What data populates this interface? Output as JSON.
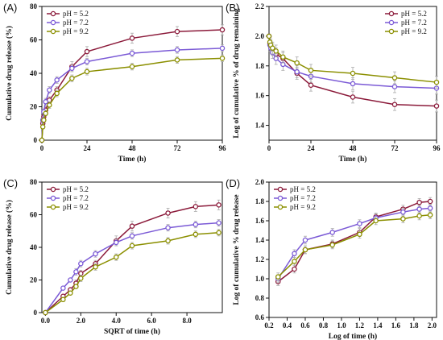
{
  "chart_data": [
    {
      "panel": "(A)",
      "type": "line",
      "xlabel": "Time (h)",
      "ylabel": "Cumulative drug release (%)",
      "xlim": [
        0,
        96
      ],
      "ylim": [
        0,
        80
      ],
      "xticks": [
        0,
        24,
        48,
        72,
        96
      ],
      "yticks": [
        0,
        20,
        40,
        60,
        80
      ],
      "legend": "top-left",
      "x": [
        0,
        0.5,
        1,
        2,
        4,
        8,
        16,
        24,
        48,
        72,
        96
      ],
      "series": [
        {
          "name": "pH = 5.2",
          "color": "#8b1a3a",
          "marker": "circle",
          "values": [
            0,
            10,
            14,
            18,
            24,
            30,
            44,
            53,
            61,
            65,
            66
          ],
          "err": [
            0,
            1,
            1,
            2,
            2,
            2,
            3,
            3,
            3,
            3,
            3
          ]
        },
        {
          "name": "pH = 7.2",
          "color": "#7b5ad6",
          "marker": "circle",
          "values": [
            0,
            12,
            17,
            23,
            30,
            36,
            43,
            47,
            52,
            54,
            55
          ],
          "err": [
            0,
            1,
            1,
            2,
            2,
            2,
            2,
            2,
            2,
            2,
            2
          ]
        },
        {
          "name": "pH = 9.2",
          "color": "#8b8f00",
          "marker": "circle",
          "values": [
            0,
            8,
            12,
            16,
            21,
            28,
            37,
            41,
            44,
            48,
            49
          ],
          "err": [
            0,
            1,
            1,
            1,
            2,
            2,
            2,
            2,
            2,
            2,
            2
          ]
        }
      ]
    },
    {
      "panel": "(B)",
      "type": "line",
      "xlabel": "Time (h)",
      "ylabel": "Log of cumulative % of drug remaining",
      "xlim": [
        0,
        96
      ],
      "ylim": [
        1.3,
        2.2
      ],
      "xticks": [
        0,
        24,
        48,
        72,
        96
      ],
      "yticks": [
        1.4,
        1.6,
        1.8,
        2.0,
        2.2
      ],
      "legend": "top-right",
      "x": [
        0,
        0.5,
        1,
        2,
        4,
        8,
        16,
        24,
        48,
        72,
        96
      ],
      "series": [
        {
          "name": "pH = 5.2",
          "color": "#8b1a3a",
          "marker": "circle",
          "values": [
            2.0,
            1.95,
            1.93,
            1.91,
            1.88,
            1.85,
            1.75,
            1.67,
            1.59,
            1.54,
            1.53
          ],
          "err": [
            0,
            0.04,
            0.04,
            0.04,
            0.04,
            0.04,
            0.04,
            0.04,
            0.04,
            0.04,
            0.04
          ]
        },
        {
          "name": "pH = 7.2",
          "color": "#7b5ad6",
          "marker": "circle",
          "values": [
            2.0,
            1.94,
            1.92,
            1.89,
            1.85,
            1.81,
            1.76,
            1.73,
            1.68,
            1.66,
            1.65
          ],
          "err": [
            0,
            0.04,
            0.04,
            0.04,
            0.04,
            0.04,
            0.04,
            0.04,
            0.04,
            0.04,
            0.04
          ]
        },
        {
          "name": "pH = 9.2",
          "color": "#8b8f00",
          "marker": "circle",
          "values": [
            2.0,
            1.96,
            1.94,
            1.92,
            1.9,
            1.86,
            1.82,
            1.77,
            1.75,
            1.72,
            1.69
          ],
          "err": [
            0,
            0.04,
            0.04,
            0.04,
            0.04,
            0.04,
            0.04,
            0.04,
            0.04,
            0.04,
            0.04
          ]
        }
      ]
    },
    {
      "panel": "(C)",
      "type": "line",
      "xlabel": "SQRT of time (h)",
      "ylabel": "Cumulative drug release (%)",
      "xlim": [
        -0.2,
        10
      ],
      "ylim": [
        0,
        80
      ],
      "xticks": [
        0.0,
        2.0,
        4.0,
        6.0,
        8.0
      ],
      "yticks": [
        0,
        20,
        40,
        60,
        80
      ],
      "legend": "top-left",
      "x": [
        0,
        1.0,
        1.41,
        1.73,
        2.0,
        2.83,
        4.0,
        4.9,
        6.93,
        8.49,
        9.8
      ],
      "series": [
        {
          "name": "pH = 5.2",
          "color": "#8b1a3a",
          "marker": "circle",
          "values": [
            0,
            10,
            14,
            18,
            24,
            30,
            44,
            53,
            61,
            65,
            66
          ],
          "err": [
            0,
            1,
            1,
            2,
            2,
            2,
            3,
            3,
            3,
            3,
            3
          ]
        },
        {
          "name": "pH = 7.2",
          "color": "#7b5ad6",
          "marker": "circle",
          "values": [
            0,
            15,
            20,
            25,
            30,
            36,
            43,
            47,
            52,
            54,
            55
          ],
          "err": [
            0,
            1,
            1,
            2,
            2,
            2,
            2,
            2,
            2,
            2,
            2
          ]
        },
        {
          "name": "pH = 9.2",
          "color": "#8b8f00",
          "marker": "circle",
          "values": [
            0,
            8,
            12,
            16,
            21,
            28,
            34,
            41,
            44,
            48,
            49
          ],
          "err": [
            0,
            1,
            1,
            1,
            2,
            2,
            2,
            2,
            2,
            2,
            2
          ]
        }
      ]
    },
    {
      "panel": "(D)",
      "type": "line",
      "xlabel": "Log of time (h)",
      "ylabel": "Log of cumulative % drug release",
      "xlim": [
        0.2,
        2.05
      ],
      "ylim": [
        0.6,
        2.0
      ],
      "xticks": [
        0.2,
        0.4,
        0.6,
        0.8,
        1.0,
        1.2,
        1.4,
        1.6,
        1.8,
        2.0
      ],
      "yticks": [
        0.6,
        0.8,
        1.0,
        1.2,
        1.4,
        1.6,
        1.8,
        2.0
      ],
      "legend": "top-left",
      "x": [
        0.3,
        0.48,
        0.6,
        0.9,
        1.2,
        1.38,
        1.68,
        1.86,
        1.98
      ],
      "series": [
        {
          "name": "pH = 5.2",
          "color": "#8b1a3a",
          "marker": "circle",
          "values": [
            0.97,
            1.1,
            1.3,
            1.36,
            1.48,
            1.64,
            1.72,
            1.79,
            1.8
          ],
          "err": [
            0.04,
            0.04,
            0.04,
            0.04,
            0.04,
            0.04,
            0.04,
            0.04,
            0.04
          ]
        },
        {
          "name": "pH = 7.2",
          "color": "#7b5ad6",
          "marker": "circle",
          "values": [
            1.0,
            1.26,
            1.4,
            1.48,
            1.57,
            1.63,
            1.69,
            1.72,
            1.73
          ],
          "err": [
            0.04,
            0.04,
            0.04,
            0.04,
            0.04,
            0.04,
            0.04,
            0.04,
            0.04
          ]
        },
        {
          "name": "pH = 9.2",
          "color": "#8b8f00",
          "marker": "circle",
          "values": [
            1.02,
            1.18,
            1.3,
            1.35,
            1.46,
            1.6,
            1.62,
            1.65,
            1.66
          ],
          "err": [
            0.04,
            0.04,
            0.04,
            0.04,
            0.04,
            0.04,
            0.04,
            0.04,
            0.04
          ]
        }
      ]
    }
  ]
}
